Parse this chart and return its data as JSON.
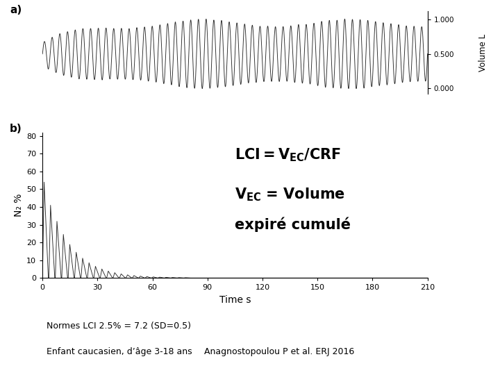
{
  "panel_a_label": "a)",
  "panel_b_label": "b)",
  "panel_a_ylabel": "Volume L",
  "panel_a_yticks": [
    0.0,
    0.5,
    1.0
  ],
  "panel_a_yticklabels": [
    "0.000",
    "0.500",
    "1.000"
  ],
  "panel_b_ylabel": "N₂ %",
  "panel_b_xlabel": "Time s",
  "panel_b_yticks": [
    0,
    10,
    20,
    30,
    40,
    50,
    60,
    70,
    80
  ],
  "panel_b_xticks": [
    0,
    30,
    60,
    90,
    120,
    150,
    180,
    210
  ],
  "panel_b_xlim": [
    0,
    210
  ],
  "panel_b_ylim": [
    0,
    82
  ],
  "bottom_text1": "Normes LCI 2.5% = 7.2 (SD=0.5)",
  "bottom_text2": "Enfant caucasien, d’âge 3-18 ans",
  "bottom_text3": "Anagnostopoulou P et al. ERJ 2016",
  "line_color": "#2a2a2a",
  "background_color": "#ffffff",
  "font_size_annotation": 15,
  "font_size_bottom": 9,
  "font_size_label": 11
}
